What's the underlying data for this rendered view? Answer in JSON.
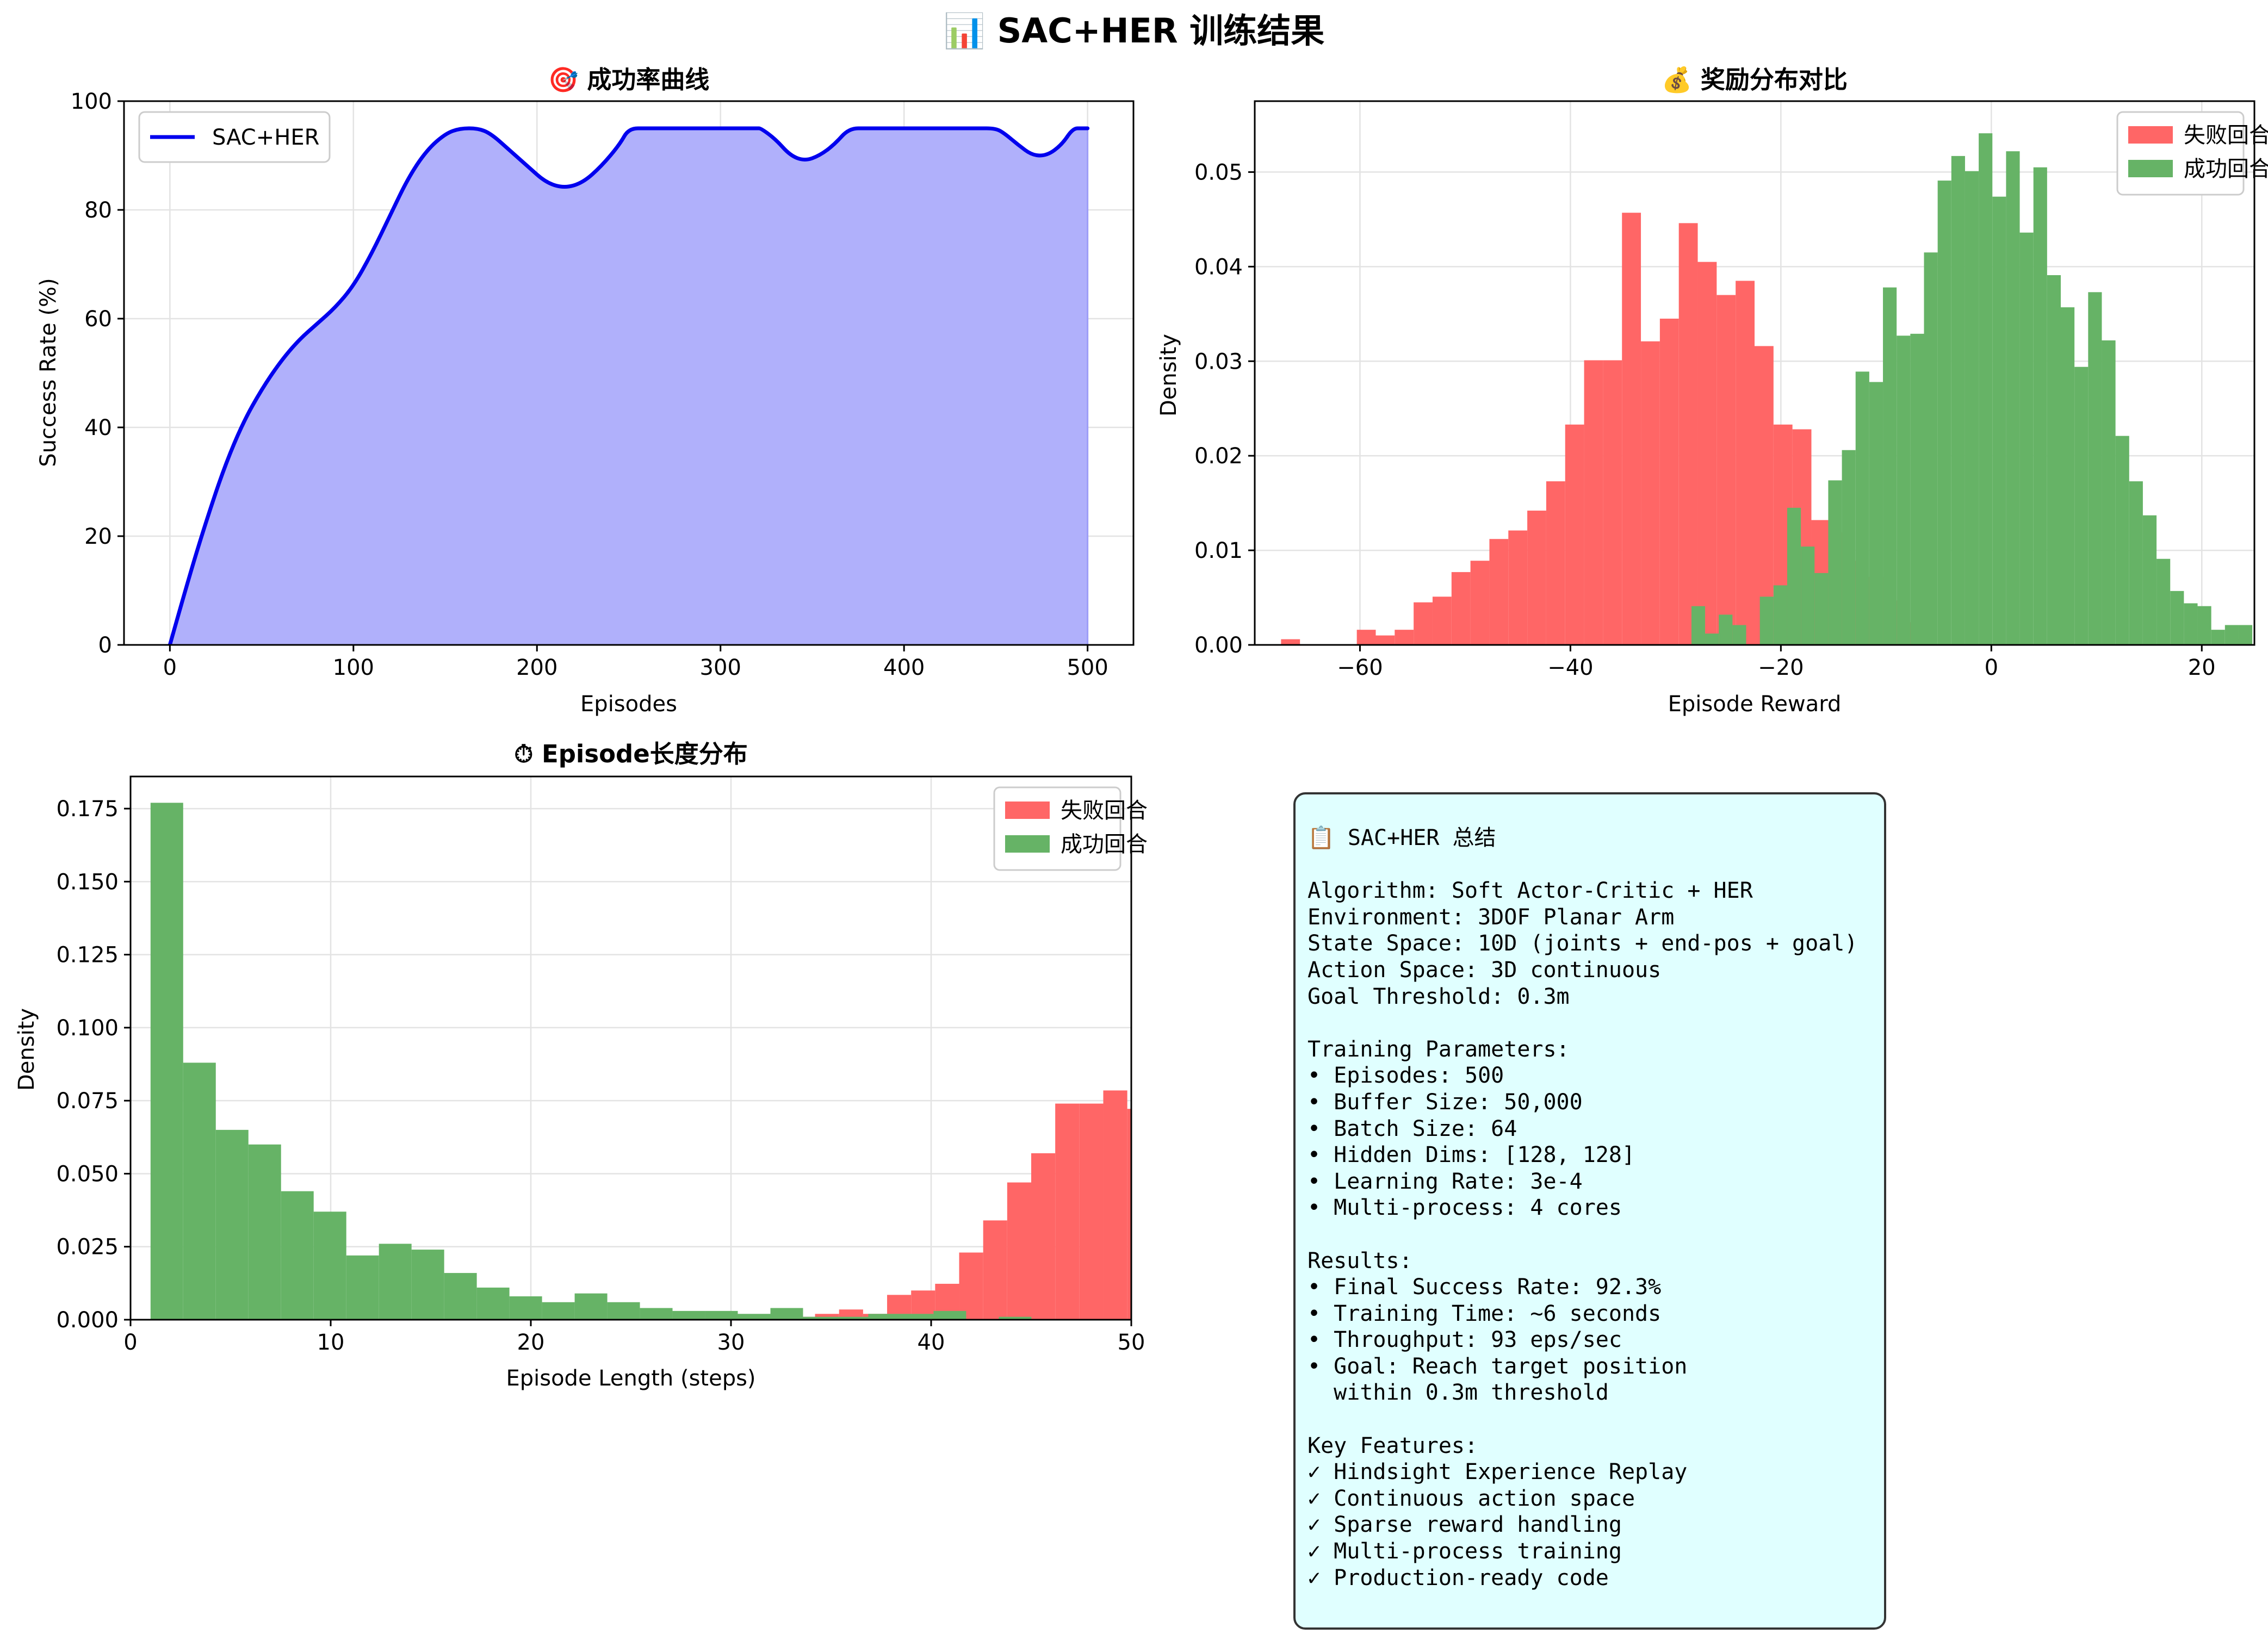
{
  "figure": {
    "title": "📊 SAC+HER 训练结果"
  },
  "info_box": {
    "text": "📋 SAC+HER 总结\n\nAlgorithm: Soft Actor-Critic + HER\nEnvironment: 3DOF Planar Arm\nState Space: 10D (joints + end-pos + goal)\nAction Space: 3D continuous\nGoal Threshold: 0.3m\n\nTraining Parameters:\n• Episodes: 500\n• Buffer Size: 50,000\n• Batch Size: 64\n• Hidden Dims: [128, 128]\n• Learning Rate: 3e-4\n• Multi-process: 4 cores\n\nResults:\n• Final Success Rate: 92.3%\n• Training Time: ~6 seconds\n• Throughput: 93 eps/sec\n• Goal: Reach target position\n  within 0.3m threshold\n\nKey Features:\n✓ Hindsight Experience Replay\n✓ Continuous action space\n✓ Sparse reward handling\n✓ Multi-process training\n✓ Production-ready code"
  },
  "chart_data": [
    {
      "type": "area",
      "title": "🎯 成功率曲线",
      "xlabel": "Episodes",
      "ylabel": "Success Rate (%)",
      "xlim": [
        -25,
        525
      ],
      "ylim": [
        0,
        100
      ],
      "xticks": [
        0,
        100,
        200,
        300,
        400,
        500
      ],
      "yticks": [
        0,
        20,
        40,
        60,
        80,
        100
      ],
      "grid": true,
      "legend_position": "top-left",
      "line_color": "#0000ee",
      "fill_color": "#b0b0fb",
      "series": [
        {
          "name": "SAC+HER",
          "x": [
            0,
            10,
            20,
            30,
            40,
            50,
            60,
            70,
            80,
            90,
            100,
            110,
            120,
            130,
            140,
            150,
            158,
            168,
            175,
            185,
            195,
            205,
            215,
            225,
            235,
            245,
            250,
            260,
            280,
            300,
            320,
            322,
            330,
            338,
            346,
            354,
            362,
            370,
            380,
            400,
            420,
            440,
            450,
            455,
            462,
            470,
            478,
            486,
            492,
            497,
            500
          ],
          "y": [
            0,
            12,
            23,
            33,
            41,
            47,
            52,
            56,
            59,
            62,
            66,
            72,
            79,
            86,
            91,
            94,
            95,
            95,
            94,
            91,
            88,
            85,
            84,
            85,
            88,
            92,
            95,
            95,
            95,
            95,
            95,
            95,
            93,
            90,
            89,
            90,
            92,
            95,
            95,
            95,
            95,
            95,
            95,
            94,
            92,
            90,
            90,
            92,
            95,
            95,
            95
          ]
        }
      ]
    },
    {
      "type": "bar",
      "title": "💰 奖励分布对比",
      "xlabel": "Episode Reward",
      "ylabel": "Density",
      "xlim": [
        -70,
        25
      ],
      "ylim": [
        0,
        0.0575
      ],
      "xticks": [
        -60,
        -40,
        -20,
        0,
        20
      ],
      "yticks": [
        0.0,
        0.01,
        0.02,
        0.03,
        0.04,
        0.05
      ],
      "grid": true,
      "legend_position": "top-right",
      "series": [
        {
          "name": "失败回合",
          "color": "#ff6666",
          "bin_start": -67.5,
          "bin_width": 1.8,
          "values": [
            0.0006,
            0,
            0,
            0,
            0.0016,
            0.001,
            0.0016,
            0.0045,
            0.0051,
            0.0077,
            0.0089,
            0.0112,
            0.0121,
            0.0142,
            0.0173,
            0.0233,
            0.0301,
            0.0301,
            0.0457,
            0.0321,
            0.0345,
            0.0446,
            0.0405,
            0.037,
            0.0385,
            0.0316,
            0.0233,
            0.0228,
            0.0132,
            0.0119,
            0.0089,
            0.0072,
            0.0047,
            0.0024,
            0,
            0,
            0,
            0,
            0,
            0,
            0,
            0,
            0,
            0,
            0,
            0,
            0,
            0,
            0,
            0,
            0.0006
          ]
        },
        {
          "name": "成功回合",
          "color": "#66b366",
          "bin_start": -28.5,
          "bin_width": 1.3,
          "values": [
            0.0041,
            0.0012,
            0.0032,
            0.0021,
            0,
            0.0051,
            0.0063,
            0.0145,
            0.0104,
            0.0076,
            0.0174,
            0.0206,
            0.0289,
            0.0278,
            0.0378,
            0.0327,
            0.0329,
            0.0415,
            0.0491,
            0.0517,
            0.0501,
            0.0541,
            0.0474,
            0.0522,
            0.0436,
            0.0505,
            0.0391,
            0.0357,
            0.0294,
            0.0373,
            0.0322,
            0.0221,
            0.0173,
            0.0137,
            0.0091,
            0.0057,
            0.0044,
            0.0041,
            0.0016,
            0.0021,
            0.0021,
            0,
            0,
            0,
            0,
            0,
            0,
            0.0016
          ]
        }
      ]
    },
    {
      "type": "bar",
      "title": "⏱ Episode长度分布",
      "xlabel": "Episode Length (steps)",
      "ylabel": "Density",
      "xlim": [
        0,
        50
      ],
      "ylim": [
        0,
        0.186
      ],
      "xticks": [
        0,
        10,
        20,
        30,
        40,
        50
      ],
      "yticks": [
        0.0,
        0.025,
        0.05,
        0.075,
        0.1,
        0.125,
        0.15,
        0.175
      ],
      "ytick_labels": [
        "0.000",
        "0.025",
        "0.050",
        "0.075",
        "0.100",
        "0.125",
        "0.150",
        "0.175"
      ],
      "grid": true,
      "legend_position": "top-right",
      "series": [
        {
          "name": "失败回合",
          "color": "#ff6666",
          "bin_start": 33.0,
          "bin_width": 1.2,
          "values": [
            0.001,
            0.002,
            0.0035,
            0.002,
            0.0085,
            0.01,
            0.0123,
            0.023,
            0.034,
            0.047,
            0.057,
            0.074,
            0.074,
            0.0785,
            0.0722,
            0.073
          ]
        },
        {
          "name": "成功回合",
          "color": "#66b366",
          "bin_start": 1.0,
          "bin_width": 1.63,
          "values": [
            0.177,
            0.088,
            0.065,
            0.06,
            0.044,
            0.037,
            0.022,
            0.026,
            0.024,
            0.016,
            0.011,
            0.008,
            0.006,
            0.009,
            0.006,
            0.004,
            0.003,
            0.003,
            0.002,
            0.004,
            0.001,
            0.001,
            0.002,
            0.002,
            0.003,
            0,
            0.001
          ]
        }
      ]
    }
  ]
}
